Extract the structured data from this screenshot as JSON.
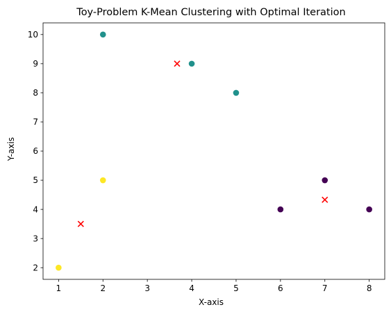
{
  "chart_data": {
    "type": "scatter",
    "title": "Toy-Problem K-Mean Clustering with Optimal Iteration",
    "xlabel": "X-axis",
    "ylabel": "Y-axis",
    "xlim": [
      0.65,
      8.35
    ],
    "ylim": [
      1.6,
      10.4
    ],
    "xticks": [
      "1",
      "2",
      "3",
      "4",
      "5",
      "6",
      "7",
      "8"
    ],
    "yticks": [
      "2",
      "3",
      "4",
      "5",
      "6",
      "7",
      "8",
      "9",
      "10"
    ],
    "grid": false,
    "points": [
      {
        "x": 1,
        "y": 2,
        "cluster": 2,
        "color": "#fde725"
      },
      {
        "x": 2,
        "y": 5,
        "cluster": 2,
        "color": "#fde725"
      },
      {
        "x": 2,
        "y": 10,
        "cluster": 1,
        "color": "#21918c"
      },
      {
        "x": 4,
        "y": 9,
        "cluster": 1,
        "color": "#21918c"
      },
      {
        "x": 5,
        "y": 8,
        "cluster": 1,
        "color": "#21918c"
      },
      {
        "x": 6,
        "y": 4,
        "cluster": 0,
        "color": "#440154"
      },
      {
        "x": 7,
        "y": 5,
        "cluster": 0,
        "color": "#440154"
      },
      {
        "x": 8,
        "y": 4,
        "cluster": 0,
        "color": "#440154"
      }
    ],
    "centroids": [
      {
        "x": 1.5,
        "y": 3.5
      },
      {
        "x": 3.67,
        "y": 9
      },
      {
        "x": 7,
        "y": 4.33
      }
    ],
    "centroid_color": "#ff0000",
    "centroid_marker": "x"
  }
}
